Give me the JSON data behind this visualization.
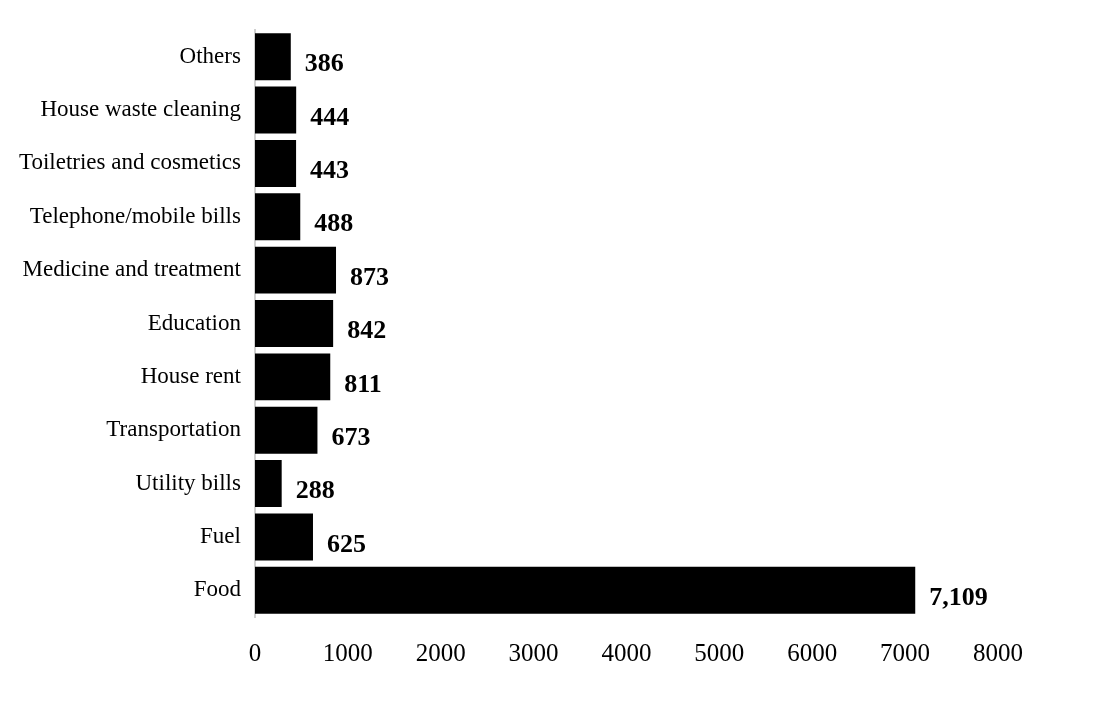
{
  "chart_data": {
    "type": "bar",
    "orientation": "horizontal",
    "categories": [
      "Others",
      "House waste cleaning",
      "Toiletries and cosmetics",
      "Telephone/mobile bills",
      "Medicine and treatment",
      "Education",
      "House rent",
      "Transportation",
      "Utility bills",
      "Fuel",
      "Food"
    ],
    "values": [
      386,
      444,
      443,
      488,
      873,
      842,
      811,
      673,
      288,
      625,
      7109
    ],
    "value_labels": [
      "386",
      "444",
      "443",
      "488",
      "873",
      "842",
      "811",
      "673",
      "288",
      "625",
      "7,109"
    ],
    "color": "#000000",
    "xlim": [
      0,
      8000
    ],
    "xticks": [
      0,
      1000,
      2000,
      3000,
      4000,
      5000,
      6000,
      7000,
      8000
    ],
    "grid": false,
    "legend": false
  }
}
